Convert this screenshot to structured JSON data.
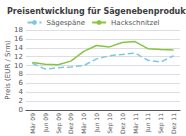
{
  "chart_data": {
    "type": "line",
    "title": "Preisentwicklung für Sägenebenprodukte",
    "y_label": "Preis (EUR / Srm)",
    "categories": [
      "Mär 09",
      "Jun 09",
      "Sep 09",
      "Dez 09",
      "Mär 10",
      "Jun 10",
      "Sep 10",
      "Dez 10",
      "Mär 11",
      "Jun 11",
      "Sep 11",
      "Dez 11"
    ],
    "series": [
      {
        "name": "Sägespäne",
        "color": "#7ec8e3",
        "line_style": "dashed",
        "values": [
          10.5,
          9.2,
          9.5,
          9.7,
          10.0,
          11.5,
          12.2,
          12.5,
          12.8,
          11.2,
          10.8,
          12.2
        ]
      },
      {
        "name": "Hackschnitzel",
        "color": "#88c440",
        "line_style": "solid",
        "values": [
          10.7,
          10.3,
          10.2,
          11.0,
          13.2,
          14.5,
          14.2,
          15.2,
          15.4,
          13.8,
          13.6,
          13.5
        ]
      }
    ],
    "ylim": [
      0,
      18
    ],
    "yticks": [
      0,
      2,
      4,
      6,
      8,
      10,
      12,
      14,
      16,
      18
    ],
    "grid": true,
    "legend": "top"
  }
}
